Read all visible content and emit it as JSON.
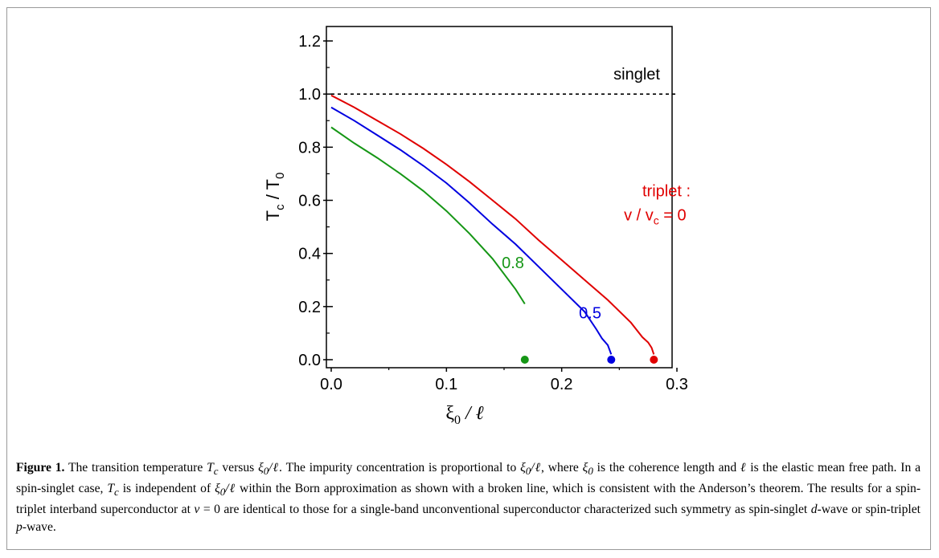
{
  "chart_data": {
    "type": "line",
    "xlim": [
      0,
      0.3
    ],
    "ylim": [
      0,
      1.2
    ],
    "x_ticks": [
      "0.0",
      "0.1",
      "0.2",
      "0.3"
    ],
    "y_ticks": [
      "0.0",
      "0.2",
      "0.4",
      "0.6",
      "0.8",
      "1.0",
      "1.2"
    ],
    "xlabel": {
      "main": "ξ",
      "sub": "0",
      "rest": " / ℓ"
    },
    "ylabel": {
      "main": "T",
      "sub": "c",
      "rest": " / T",
      "sub2": "0"
    },
    "grid": false,
    "legend": "none",
    "series": [
      {
        "color": "#000000",
        "style": "dashed",
        "x": [
          0,
          0.3
        ],
        "y": [
          1.0,
          1.0
        ]
      },
      {
        "color": "#e00000",
        "style": "solid",
        "x": [
          0,
          0.02,
          0.04,
          0.06,
          0.08,
          0.1,
          0.12,
          0.14,
          0.16,
          0.18,
          0.2,
          0.22,
          0.24,
          0.26,
          0.27,
          0.275,
          0.278,
          0.28
        ],
        "y": [
          0.995,
          0.95,
          0.9,
          0.85,
          0.795,
          0.735,
          0.67,
          0.6,
          0.53,
          0.45,
          0.375,
          0.3,
          0.225,
          0.14,
          0.085,
          0.065,
          0.045,
          0.02
        ],
        "end_point": [
          0.28,
          0.0
        ]
      },
      {
        "color": "#0000e0",
        "style": "solid",
        "x": [
          0,
          0.02,
          0.04,
          0.06,
          0.08,
          0.1,
          0.12,
          0.14,
          0.16,
          0.18,
          0.2,
          0.22,
          0.23,
          0.235,
          0.24,
          0.243
        ],
        "y": [
          0.95,
          0.9,
          0.845,
          0.79,
          0.73,
          0.665,
          0.59,
          0.51,
          0.435,
          0.35,
          0.265,
          0.18,
          0.115,
          0.08,
          0.055,
          0.02
        ],
        "end_point": [
          0.243,
          0.0
        ]
      },
      {
        "color": "#159615",
        "style": "solid",
        "x": [
          0,
          0.02,
          0.04,
          0.06,
          0.08,
          0.1,
          0.12,
          0.14,
          0.16,
          0.168
        ],
        "y": [
          0.875,
          0.815,
          0.76,
          0.7,
          0.635,
          0.56,
          0.475,
          0.38,
          0.265,
          0.21
        ],
        "end_point": [
          0.168,
          0.0
        ]
      }
    ],
    "annotations": {
      "singlet": {
        "text": "singlet",
        "x": 0.245,
        "y": 1.055,
        "color": "#000000"
      },
      "triplet_line1": {
        "text": "triplet :",
        "x": 0.27,
        "y": 0.615,
        "color": "#e00000"
      },
      "triplet_line2_pre": {
        "text": "v / v",
        "x": 0.254,
        "y": 0.525,
        "color": "#e00000"
      },
      "triplet_line2_sub": {
        "text": "c"
      },
      "triplet_line2_post": {
        "text": " = 0"
      },
      "label_05": {
        "text": "0.5",
        "x": 0.215,
        "y": 0.155,
        "color": "#0000e0"
      },
      "label_08": {
        "text": "0.8",
        "x": 0.148,
        "y": 0.345,
        "color": "#159615"
      }
    }
  },
  "caption": {
    "label": "Figure 1.",
    "text_1": " The transition temperature ",
    "tc_T": "T",
    "tc_c": "c",
    "text_2": " versus ",
    "xi": "ξ",
    "xi_sub": "0",
    "slash_l": "/ℓ",
    "text_3": ". The impurity concentration is proportional to ",
    "text_4": ", where ",
    "text_5": " is the coherence length and ",
    "ell": "ℓ",
    "text_6": " is the elastic mean free path. In a spin-singlet case, ",
    "text_7": " is independent of ",
    "text_8": " within the Born approximation as shown with a broken line, which is consistent with the Anderson’s theorem. The results for a spin-triplet interband superconductor at ",
    "v_eq": "v",
    "eq_0": " = 0",
    "text_9": " are identical to those for a single-band unconventional superconductor characterized such symmetry as spin-singlet ",
    "d": "d",
    "text_10": "-wave or spin-triplet ",
    "p": "p",
    "text_11": "-wave."
  }
}
